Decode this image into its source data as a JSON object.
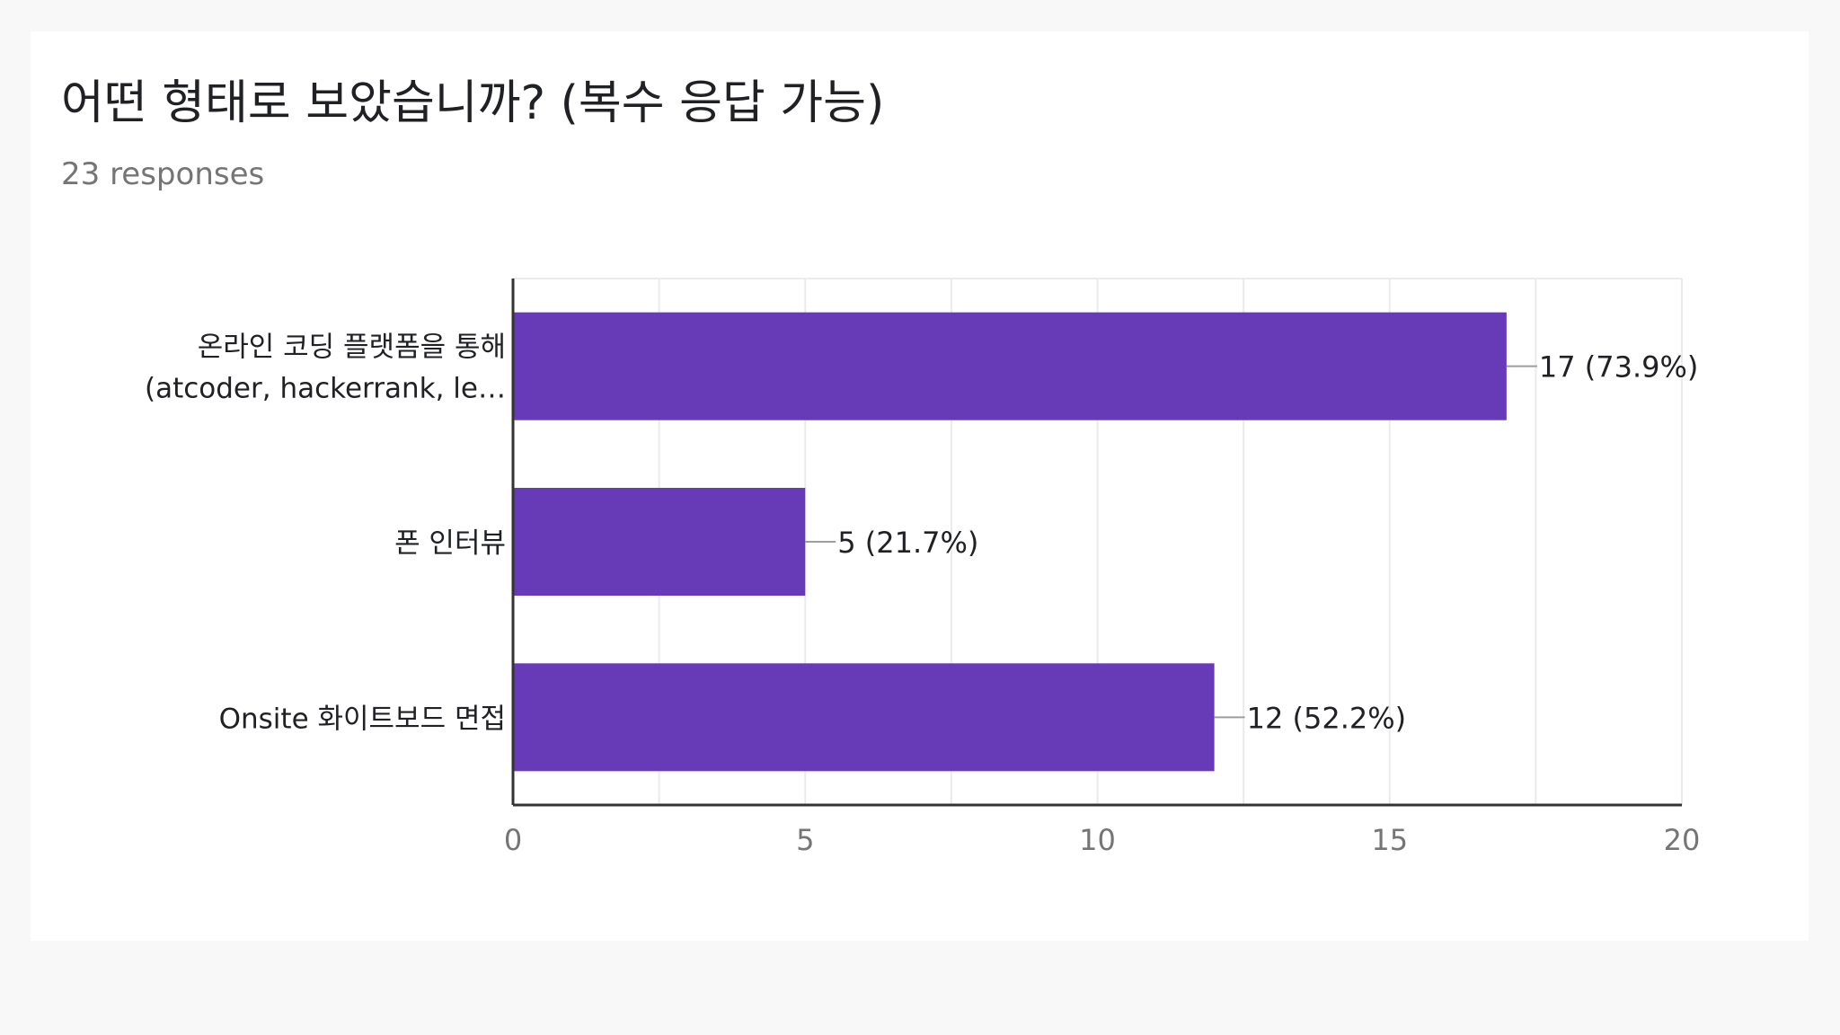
{
  "header": {
    "title": "어떤 형태로 보았습니까? (복수 응답 가능)",
    "subtitle": "23 responses"
  },
  "colors": {
    "bar": "#673ab7",
    "grid": "#ebebeb",
    "axis": "#333333",
    "text": "#202124",
    "subtext": "#757575"
  },
  "chart_data": {
    "type": "bar",
    "orientation": "horizontal",
    "title": "어떤 형태로 보았습니까? (복수 응답 가능)",
    "subtitle": "23 responses",
    "categories": [
      [
        "온라인 코딩 플랫폼을 통해",
        "(atcoder, hackerrank, le…"
      ],
      [
        "폰 인터뷰"
      ],
      [
        "Onsite 화이트보드 면접"
      ]
    ],
    "values": [
      17,
      5,
      12
    ],
    "data_labels": [
      "17 (73.9%)",
      "5 (21.7%)",
      "12 (52.2%)"
    ],
    "xlim": [
      0,
      20
    ],
    "x_ticks": [
      0,
      5,
      10,
      15,
      20
    ],
    "tick_labels": [
      "0",
      "5",
      "10",
      "15",
      "20"
    ],
    "grid": true,
    "legend": "none"
  }
}
